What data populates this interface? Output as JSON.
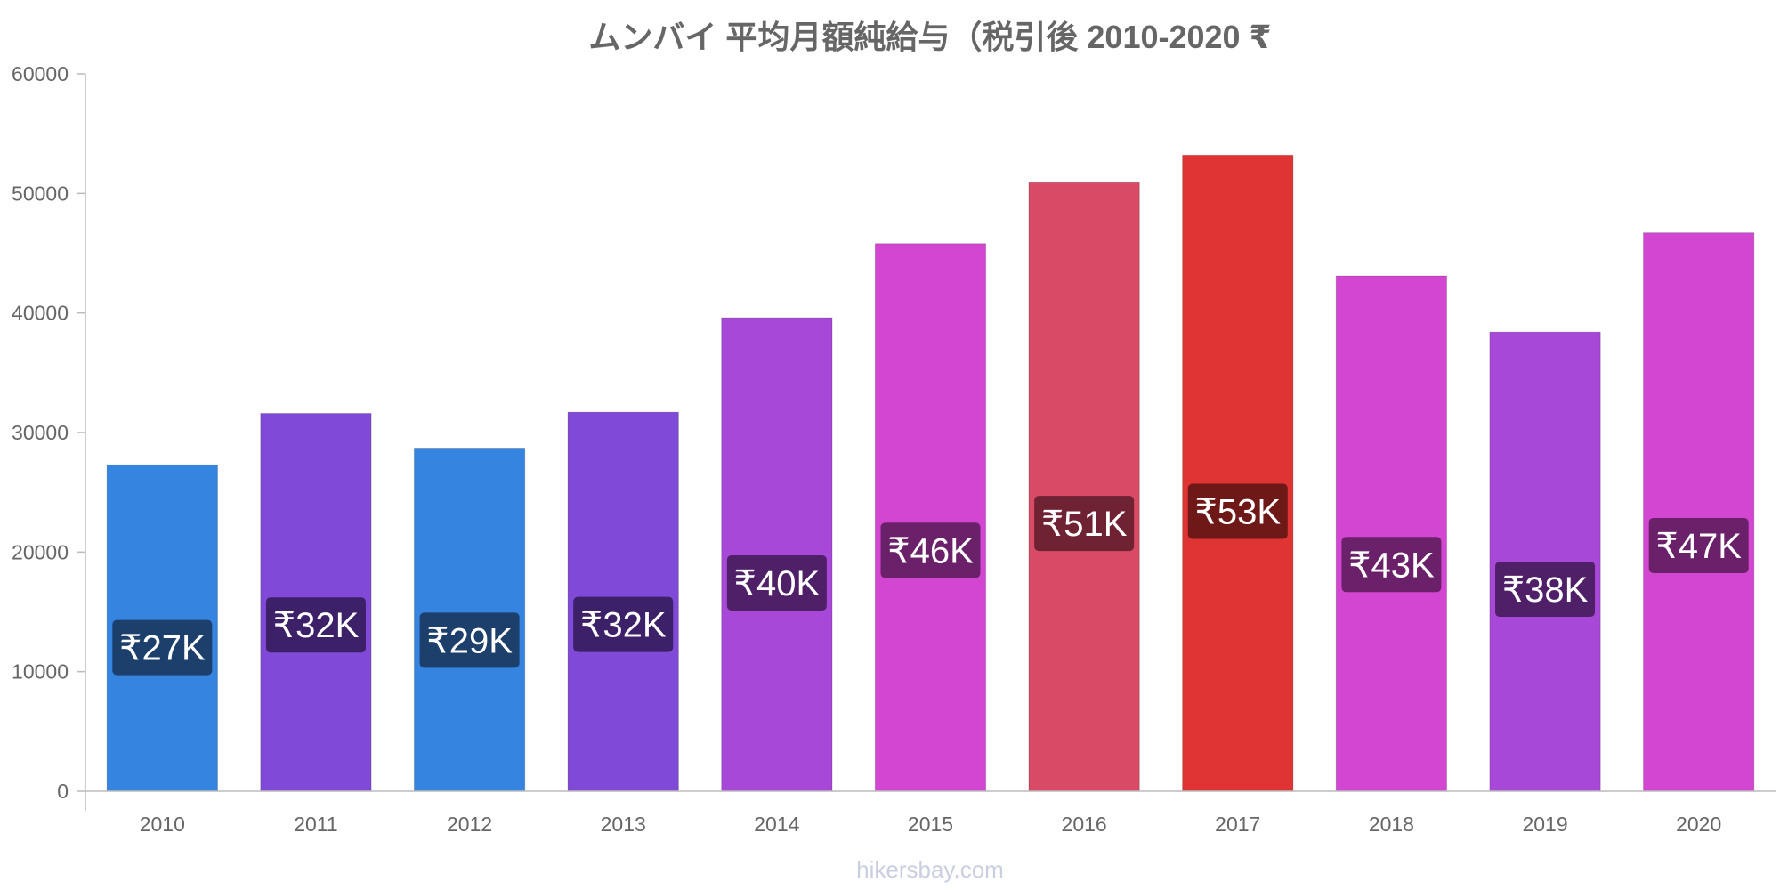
{
  "chart_data": {
    "type": "bar",
    "title": "ムンバイ 平均月額純給与（税引後 2010-2020 ₹",
    "xlabel": "",
    "ylabel": "",
    "ylim": [
      0,
      60000
    ],
    "yticks": [
      "0",
      "10000",
      "20000",
      "30000",
      "40000",
      "50000",
      "60000"
    ],
    "grid": false,
    "categories": [
      "2010",
      "2011",
      "2012",
      "2013",
      "2014",
      "2015",
      "2016",
      "2017",
      "2018",
      "2019",
      "2020"
    ],
    "values": [
      27300,
      31600,
      28700,
      31700,
      39600,
      45800,
      50900,
      53200,
      43100,
      38400,
      46700
    ],
    "labels": [
      "₹27K",
      "₹32K",
      "₹29K",
      "₹32K",
      "₹40K",
      "₹46K",
      "₹51K",
      "₹53K",
      "₹43K",
      "₹38K",
      "₹47K"
    ],
    "colors": [
      "#3584e0",
      "#8049d8",
      "#3584e0",
      "#8049d8",
      "#a848d8",
      "#d346d2",
      "#d84a66",
      "#e03333",
      "#d346d2",
      "#a848d8",
      "#d346d2"
    ],
    "label_colors": [
      "#1d3f6b",
      "#3c2068",
      "#1d3f6b",
      "#3c2068",
      "#4f2068",
      "#6b2169",
      "#6f2232",
      "#6e1818",
      "#6b2169",
      "#4f2068",
      "#6b2169"
    ],
    "source": "hikersbay.com"
  }
}
